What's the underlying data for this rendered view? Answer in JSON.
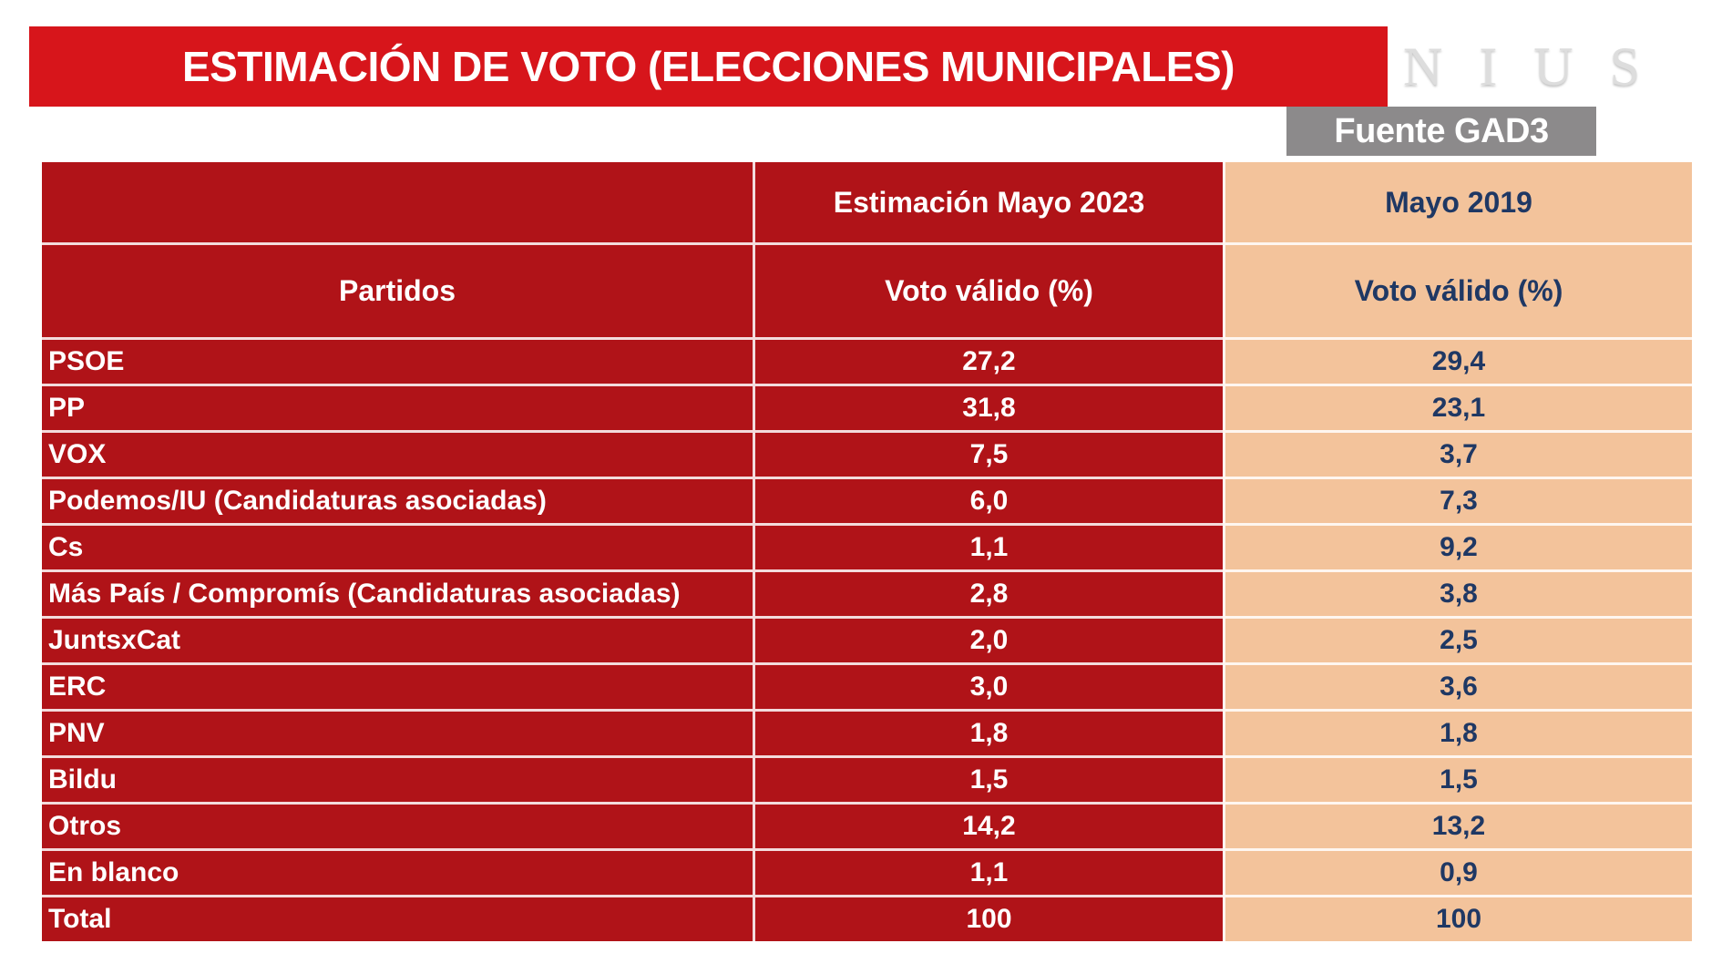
{
  "header": {
    "title": "ESTIMACIÓN DE VOTO (ELECCIONES MUNICIPALES)",
    "logo": "NIUS",
    "source_label": "Fuente GAD3"
  },
  "colors": {
    "banner_red": "#D7151B",
    "table_red": "#B01318",
    "peach": "#F3C39B",
    "navy_text": "#1F3864",
    "source_gray": "#8C8A8B",
    "logo_gray": "#DDDDDD",
    "white": "#FFFFFF"
  },
  "table": {
    "header": {
      "col1_title": "Partidos",
      "est_group": "Estimación Mayo 2023",
      "prev_group": "Mayo 2019",
      "est_sub": "Voto válido (%)",
      "prev_sub": "Voto válido (%)"
    },
    "rows": [
      {
        "party": "PSOE",
        "est": "27,2",
        "prev": "29,4"
      },
      {
        "party": "PP",
        "est": "31,8",
        "prev": "23,1"
      },
      {
        "party": "VOX",
        "est": "7,5",
        "prev": "3,7"
      },
      {
        "party": "Podemos/IU (Candidaturas asociadas)",
        "est": "6,0",
        "prev": "7,3"
      },
      {
        "party": "Cs",
        "est": "1,1",
        "prev": "9,2"
      },
      {
        "party": "Más País / Compromís (Candidaturas asociadas)",
        "est": "2,8",
        "prev": "3,8"
      },
      {
        "party": "JuntsxCat",
        "est": "2,0",
        "prev": "2,5"
      },
      {
        "party": "ERC",
        "est": "3,0",
        "prev": "3,6"
      },
      {
        "party": "PNV",
        "est": "1,8",
        "prev": "1,8"
      },
      {
        "party": "Bildu",
        "est": "1,5",
        "prev": "1,5"
      },
      {
        "party": "Otros",
        "est": "14,2",
        "prev": "13,2"
      },
      {
        "party": "En blanco",
        "est": "1,1",
        "prev": "0,9"
      },
      {
        "party": "Total",
        "est": "100",
        "prev": "100"
      }
    ]
  },
  "chart_data": {
    "type": "table",
    "title": "ESTIMACIÓN DE VOTO (ELECCIONES MUNICIPALES)",
    "source": "Fuente GAD3",
    "columns": [
      "Partidos",
      "Estimación Mayo 2023 - Voto válido (%)",
      "Mayo 2019 - Voto válido (%)"
    ],
    "categories": [
      "PSOE",
      "PP",
      "VOX",
      "Podemos/IU (Candidaturas asociadas)",
      "Cs",
      "Más País / Compromís (Candidaturas asociadas)",
      "JuntsxCat",
      "ERC",
      "PNV",
      "Bildu",
      "Otros",
      "En blanco",
      "Total"
    ],
    "series": [
      {
        "name": "Estimación Mayo 2023 (Voto válido %)",
        "values": [
          27.2,
          31.8,
          7.5,
          6.0,
          1.1,
          2.8,
          2.0,
          3.0,
          1.8,
          1.5,
          14.2,
          1.1,
          100
        ]
      },
      {
        "name": "Mayo 2019 (Voto válido %)",
        "values": [
          29.4,
          23.1,
          3.7,
          7.3,
          9.2,
          3.8,
          2.5,
          3.6,
          1.8,
          1.5,
          13.2,
          0.9,
          100
        ]
      }
    ]
  }
}
